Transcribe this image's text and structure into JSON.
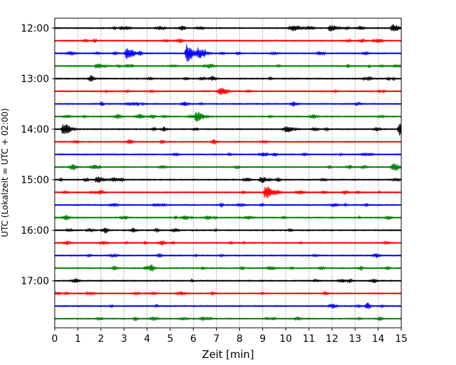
{
  "chart_data": {
    "type": "line",
    "subtype": "helicorder / seismogram drum plot",
    "title": "",
    "xlabel": "Zeit  [min]",
    "ylabel": "UTC (Lokalzeit = UTC + 02:00)",
    "xlim": [
      0,
      15
    ],
    "xticks": [
      0,
      1,
      2,
      3,
      4,
      5,
      6,
      7,
      8,
      9,
      10,
      11,
      12,
      13,
      14,
      15
    ],
    "x_gridlines": "dotted, every 1 min",
    "row_interval_min": 15,
    "row_colors_cycle": [
      "#000000",
      "#ff0000",
      "#0000ff",
      "#008000"
    ],
    "rows": [
      {
        "start": "12:00",
        "label": "12:00",
        "events_min": [
          10.3,
          11.9,
          14.6
        ],
        "amplitude": [
          0.35,
          0.35,
          0.4
        ]
      },
      {
        "start": "12:15",
        "label": "",
        "events_min": [],
        "amplitude": []
      },
      {
        "start": "12:30",
        "label": "",
        "events_min": [
          3.1,
          5.7,
          6.2
        ],
        "amplitude": [
          0.7,
          1.0,
          0.55
        ]
      },
      {
        "start": "12:45",
        "label": "",
        "events_min": [
          1.8
        ],
        "amplitude": [
          0.3
        ]
      },
      {
        "start": "13:00",
        "label": "13:00",
        "events_min": [],
        "amplitude": []
      },
      {
        "start": "13:15",
        "label": "",
        "events_min": [
          7.1
        ],
        "amplitude": [
          0.3
        ]
      },
      {
        "start": "13:30",
        "label": "",
        "events_min": [],
        "amplitude": []
      },
      {
        "start": "13:45",
        "label": "",
        "events_min": [
          6.1
        ],
        "amplitude": [
          0.6
        ]
      },
      {
        "start": "14:00",
        "label": "14:00",
        "events_min": [
          0.35,
          10.0,
          14.9
        ],
        "amplitude": [
          0.7,
          0.35,
          0.8
        ]
      },
      {
        "start": "14:15",
        "label": "",
        "events_min": [],
        "amplitude": []
      },
      {
        "start": "14:30",
        "label": "",
        "events_min": [],
        "amplitude": []
      },
      {
        "start": "14:45",
        "label": "",
        "events_min": [
          14.6
        ],
        "amplitude": [
          0.35
        ]
      },
      {
        "start": "15:00",
        "label": "15:00",
        "events_min": [
          1.8,
          8.9
        ],
        "amplitude": [
          0.35,
          0.35
        ]
      },
      {
        "start": "15:15",
        "label": "",
        "events_min": [
          9.1
        ],
        "amplitude": [
          0.75
        ]
      },
      {
        "start": "15:30",
        "label": "",
        "events_min": [],
        "amplitude": []
      },
      {
        "start": "15:45",
        "label": "",
        "events_min": [],
        "amplitude": []
      },
      {
        "start": "16:00",
        "label": "16:00",
        "events_min": [],
        "amplitude": []
      },
      {
        "start": "16:15",
        "label": "",
        "events_min": [],
        "amplitude": []
      },
      {
        "start": "16:30",
        "label": "",
        "events_min": [],
        "amplitude": []
      },
      {
        "start": "16:45",
        "label": "",
        "events_min": [],
        "amplitude": []
      },
      {
        "start": "17:00",
        "label": "17:00",
        "events_min": [],
        "amplitude": []
      },
      {
        "start": "17:15",
        "label": "",
        "events_min": [],
        "amplitude": []
      },
      {
        "start": "17:30",
        "label": "",
        "events_min": [],
        "amplitude": []
      },
      {
        "start": "17:45",
        "label": "",
        "events_min": [],
        "amplitude": []
      }
    ]
  }
}
